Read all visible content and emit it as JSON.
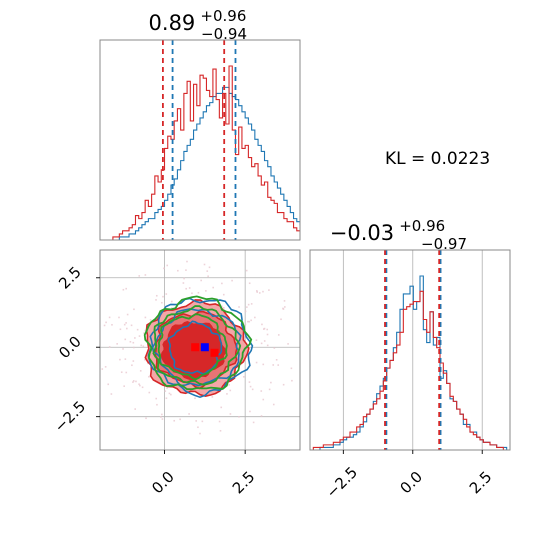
{
  "colors": {
    "blue": "#1f77b4",
    "red": "#d62728",
    "green": "#2ca02c",
    "axes_edge": "#888888",
    "grid": "#b0b0b0"
  },
  "chart_data": [
    {
      "type": "histogram",
      "panel": "top-left (marginal of parameter 1)",
      "title": {
        "median": "0.89",
        "plus": "+0.96",
        "minus": "−0.94"
      },
      "xlim": [
        -2.0,
        4.2
      ],
      "x_ticks": [],
      "y_ticks": [],
      "grid": false,
      "bin_edges_start": -2.0,
      "bin_width": 0.1,
      "series": [
        {
          "color": "blue",
          "counts": [
            0,
            0,
            0,
            0,
            0,
            0,
            1,
            1,
            1,
            2,
            2,
            3,
            4,
            5,
            6,
            7,
            7,
            9,
            10,
            11,
            13,
            15,
            18,
            20,
            23,
            26,
            29,
            31,
            33,
            36,
            38,
            40,
            42,
            44,
            45,
            47,
            48,
            48,
            50,
            50,
            48,
            47,
            46,
            44,
            42,
            40,
            38,
            36,
            33,
            31,
            29,
            26,
            24,
            21,
            19,
            17,
            15,
            13,
            11,
            9,
            7,
            6,
            5,
            4,
            3,
            3,
            2,
            2,
            1,
            1,
            1,
            0
          ],
          "quantile_lines": [
            0.25,
            2.2
          ]
        },
        {
          "color": "red",
          "counts": [
            0,
            0,
            0,
            0,
            1,
            1,
            2,
            3,
            3,
            4,
            5,
            8,
            7,
            9,
            13,
            11,
            15,
            21,
            19,
            23,
            30,
            34,
            33,
            39,
            43,
            36,
            48,
            52,
            39,
            51,
            44,
            54,
            53,
            49,
            47,
            56,
            46,
            40,
            48,
            38,
            57,
            36,
            28,
            37,
            30,
            31,
            27,
            24,
            25,
            21,
            18,
            19,
            14,
            13,
            12,
            9,
            9,
            7,
            6,
            6,
            4,
            3,
            3,
            3,
            2,
            1,
            1,
            1,
            0,
            0,
            0,
            0
          ],
          "quantile_lines": [
            -0.05,
            1.85
          ]
        }
      ]
    },
    {
      "type": "contour",
      "panel": "bottom-left (joint density)",
      "xlim": [
        -2.0,
        4.2
      ],
      "ylim": [
        -3.7,
        3.5
      ],
      "x_ticks": [
        "0.0",
        "2.5"
      ],
      "y_ticks": [
        "−2.5",
        "0.0",
        "2.5"
      ],
      "grid": true,
      "blue_marker": {
        "x": 1.25,
        "y": 0.0
      },
      "red_markers": [
        {
          "x": 0.95,
          "y": 0.0
        },
        {
          "x": 1.55,
          "y": -0.2
        }
      ],
      "red_filled_contours": [
        {
          "center": [
            0.95,
            -0.05
          ],
          "radius": [
            1.55,
            1.65
          ]
        },
        {
          "center": [
            0.95,
            -0.05
          ],
          "radius": [
            1.25,
            1.3
          ]
        },
        {
          "center": [
            0.9,
            -0.1
          ],
          "radius": [
            0.95,
            1.0
          ]
        }
      ],
      "blue_contours": [
        {
          "center": [
            1.1,
            0.05
          ],
          "radius": [
            1.55,
            1.7
          ]
        },
        {
          "center": [
            1.05,
            0.0
          ],
          "radius": [
            1.3,
            1.35
          ]
        },
        {
          "center": [
            0.95,
            -0.05
          ],
          "radius": [
            0.8,
            0.9
          ]
        }
      ],
      "green_contours": [
        {
          "center": [
            1.0,
            0.1
          ],
          "radius": [
            1.55,
            1.65
          ]
        },
        {
          "center": [
            0.95,
            0.05
          ],
          "radius": [
            1.3,
            1.35
          ]
        },
        {
          "center": [
            0.85,
            0.05
          ],
          "radius": [
            1.05,
            1.1
          ]
        }
      ]
    },
    {
      "type": "histogram",
      "panel": "bottom-right (marginal of parameter 2)",
      "title": {
        "median": "−0.03",
        "plus": "+0.96",
        "minus": "−0.97"
      },
      "xlim": [
        -3.7,
        3.5
      ],
      "x_ticks": [
        "−2.5",
        "0.0",
        "2.5"
      ],
      "y_ticks": [],
      "grid": true,
      "bin_edges_start": -3.7,
      "bin_width": 0.12,
      "series": [
        {
          "color": "blue",
          "counts": [
            0,
            0,
            0,
            1,
            1,
            1,
            1,
            2,
            2,
            3,
            4,
            5,
            5,
            6,
            7,
            9,
            11,
            14,
            16,
            19,
            22,
            25,
            28,
            32,
            35,
            40,
            46,
            55,
            61,
            61,
            64,
            55,
            58,
            68,
            47,
            42,
            54,
            41,
            44,
            28,
            31,
            26,
            20,
            19,
            16,
            14,
            10,
            10,
            7,
            7,
            5,
            4,
            3,
            3,
            2,
            2,
            1,
            1,
            1,
            0
          ],
          "quantile_lines": [
            -0.95,
            1.0
          ]
        },
        {
          "color": "red",
          "counts": [
            0,
            1,
            1,
            1,
            2,
            2,
            2,
            3,
            3,
            4,
            5,
            5,
            7,
            7,
            9,
            10,
            13,
            14,
            16,
            18,
            20,
            23,
            27,
            32,
            35,
            38,
            41,
            46,
            55,
            56,
            57,
            58,
            58,
            62,
            51,
            46,
            54,
            44,
            40,
            34,
            30,
            26,
            21,
            19,
            16,
            14,
            12,
            9,
            7,
            6,
            5,
            4,
            3,
            3,
            2,
            2,
            1,
            1,
            0,
            0
          ],
          "quantile_lines": [
            -1.0,
            0.95
          ]
        }
      ]
    }
  ],
  "annotation": {
    "kl_text": "KL = 0.0223"
  }
}
